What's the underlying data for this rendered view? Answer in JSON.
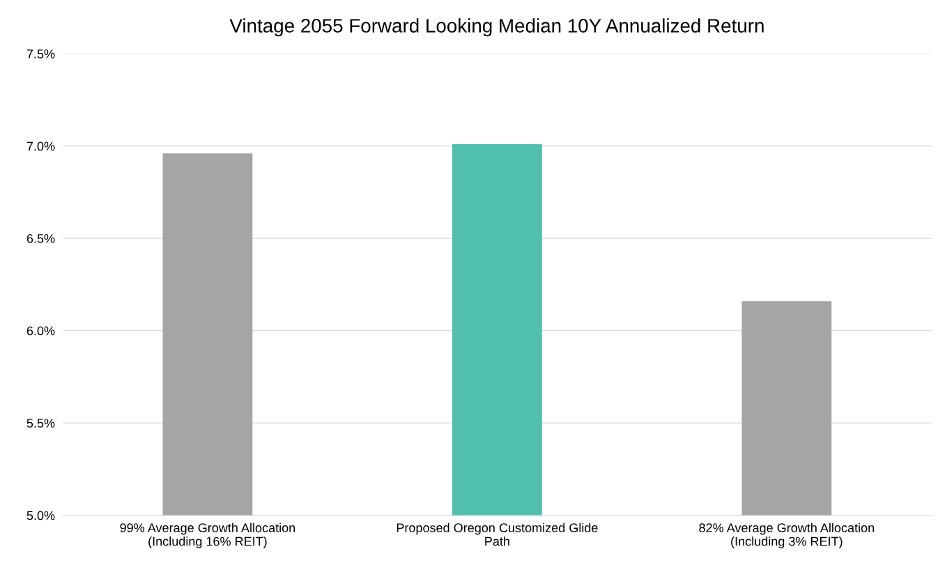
{
  "chart_data": {
    "type": "bar",
    "title": "Vintage 2055 Forward Looking Median 10Y Annualized Return",
    "categories": [
      "99% Average Growth Allocation\n(Including 16% REIT)",
      "Proposed Oregon Customized Glide\nPath",
      "82% Average Growth Allocation\n(Including 3% REIT)"
    ],
    "values": [
      6.96,
      7.01,
      6.16
    ],
    "colors": [
      "#a5a5a5",
      "#50bfae",
      "#a5a5a5"
    ],
    "ylim": [
      5.0,
      7.5
    ],
    "yticks": [
      {
        "value": 5.0,
        "label": "5.0%"
      },
      {
        "value": 5.5,
        "label": "5.5%"
      },
      {
        "value": 6.0,
        "label": "6.0%"
      },
      {
        "value": 6.5,
        "label": "6.5%"
      },
      {
        "value": 7.0,
        "label": "7.0%"
      },
      {
        "value": 7.5,
        "label": "7.5%"
      }
    ],
    "grid": "y"
  }
}
